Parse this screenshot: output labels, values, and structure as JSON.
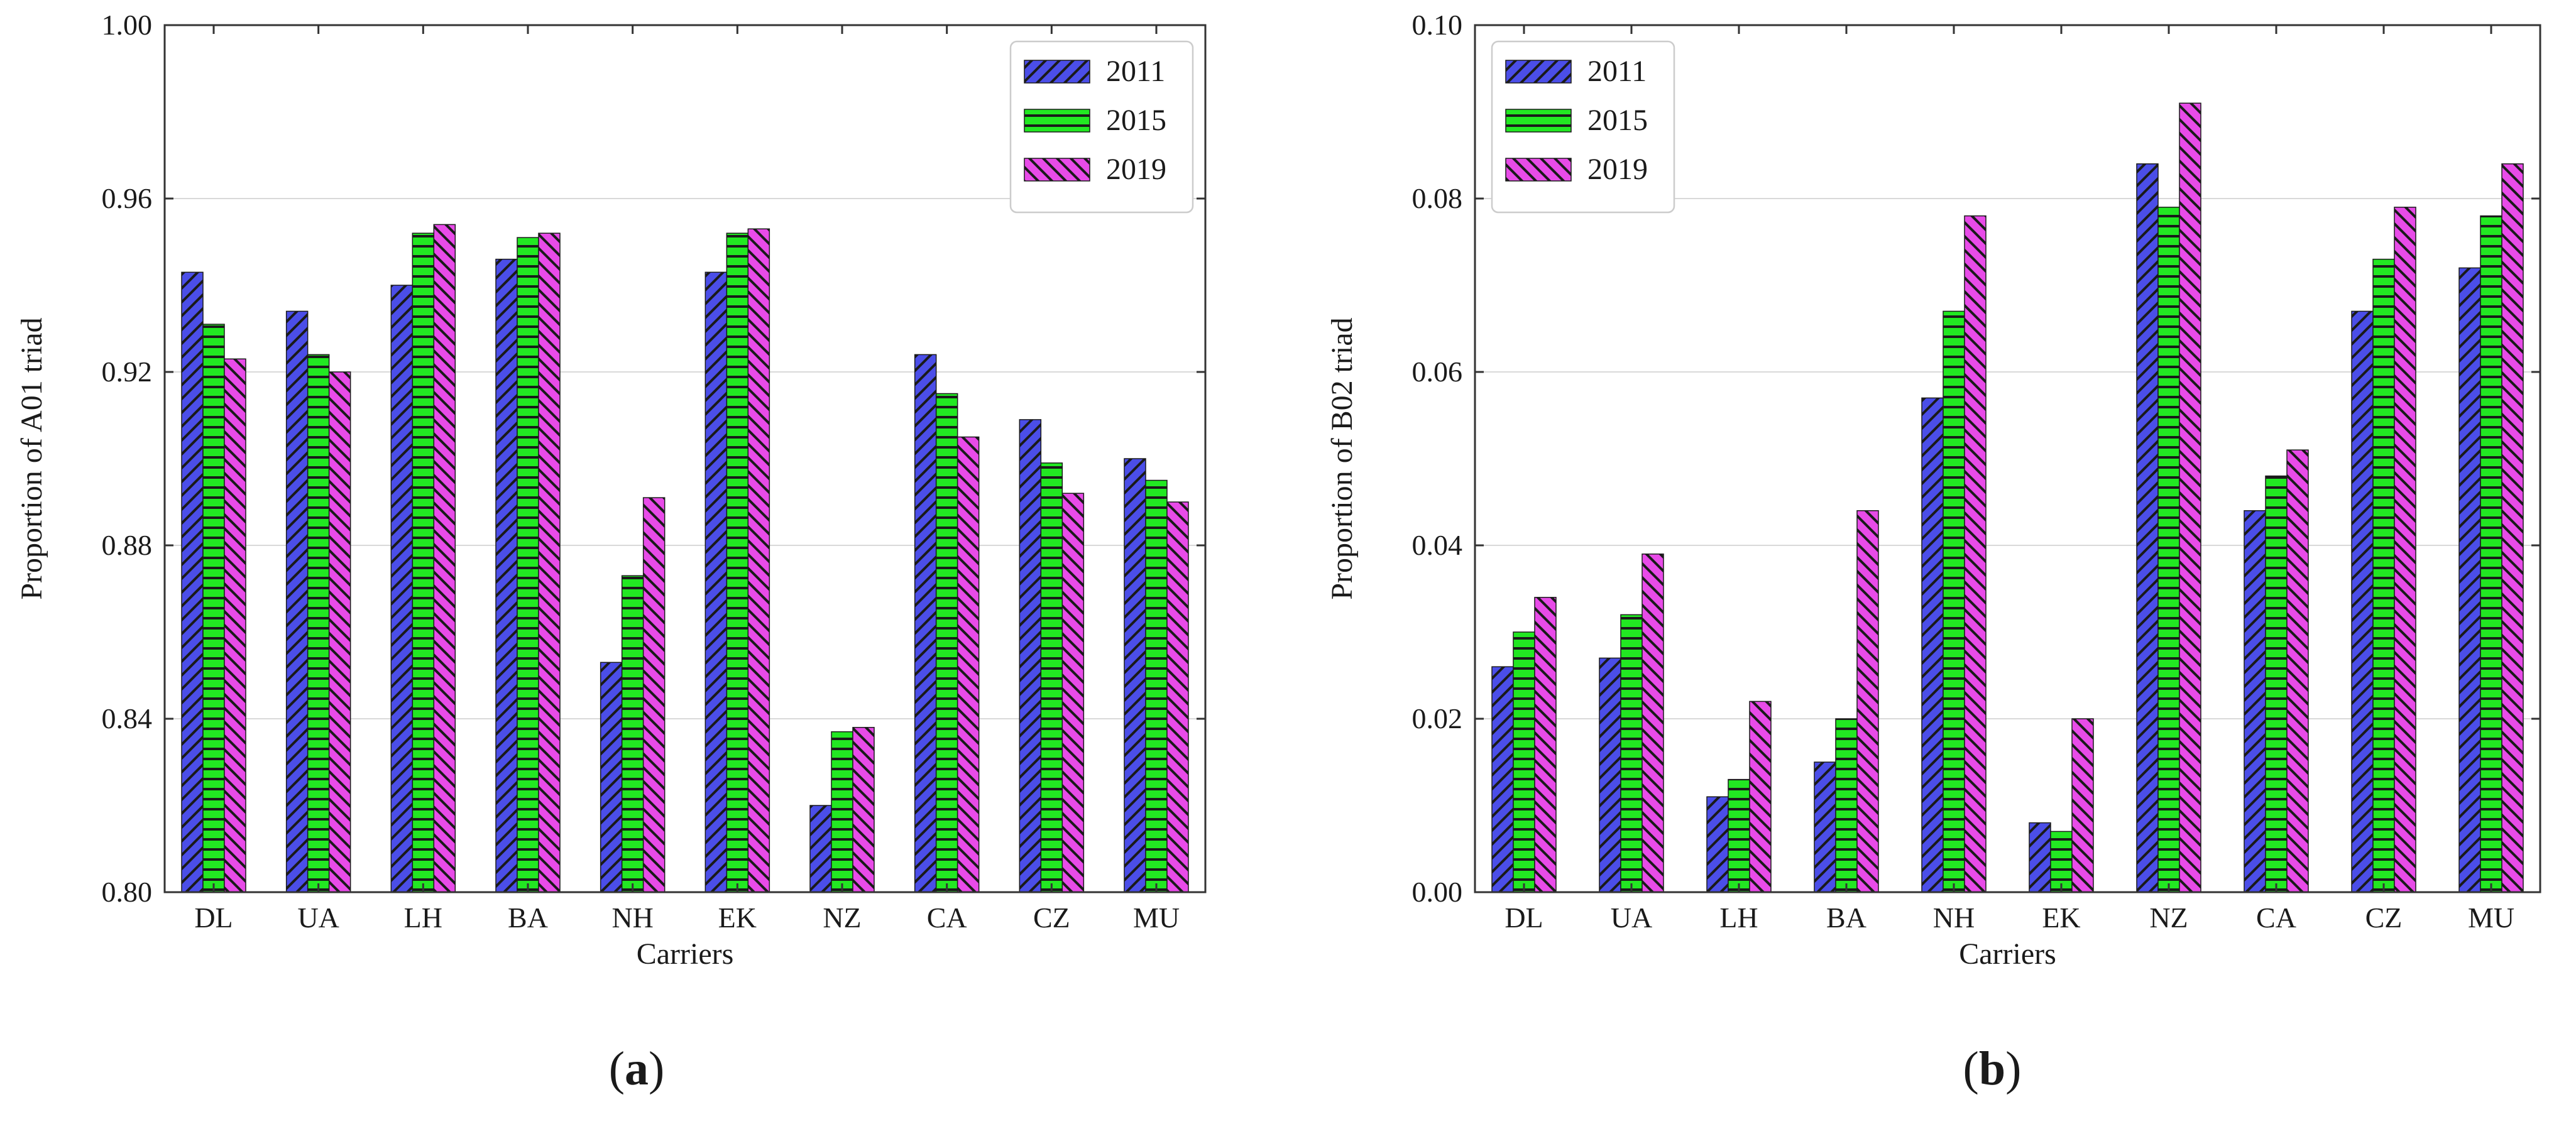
{
  "chart_data": [
    {
      "type": "bar",
      "panel_label": "a",
      "title": "",
      "xlabel": "Carriers",
      "ylabel": "Proportion of A01 triad",
      "ylim": [
        0.8,
        1.0
      ],
      "yticks": [
        0.8,
        0.84,
        0.88,
        0.92,
        0.96,
        1.0
      ],
      "ytick_labels": [
        "0.80",
        "0.84",
        "0.88",
        "0.92",
        "0.96",
        "1.00"
      ],
      "grid": true,
      "legend_position": "top-right",
      "categories": [
        "DL",
        "UA",
        "LH",
        "BA",
        "NH",
        "EK",
        "NZ",
        "CA",
        "CZ",
        "MU"
      ],
      "series": [
        {
          "name": "2011",
          "color": "#4b4ee8",
          "hatch": "diagonal-forward",
          "values": [
            0.943,
            0.934,
            0.94,
            0.946,
            0.853,
            0.943,
            0.82,
            0.924,
            0.909,
            0.9
          ]
        },
        {
          "name": "2015",
          "color": "#22e822",
          "hatch": "horizontal",
          "values": [
            0.931,
            0.924,
            0.952,
            0.951,
            0.873,
            0.952,
            0.837,
            0.915,
            0.899,
            0.895
          ]
        },
        {
          "name": "2019",
          "color": "#e84be8",
          "hatch": "diagonal-back",
          "values": [
            0.923,
            0.92,
            0.954,
            0.952,
            0.891,
            0.953,
            0.838,
            0.905,
            0.892,
            0.89
          ]
        }
      ]
    },
    {
      "type": "bar",
      "panel_label": "b",
      "title": "",
      "xlabel": "Carriers",
      "ylabel": "Proportion of B02 triad",
      "ylim": [
        0.0,
        0.1
      ],
      "yticks": [
        0.0,
        0.02,
        0.04,
        0.06,
        0.08,
        0.1
      ],
      "ytick_labels": [
        "0.00",
        "0.02",
        "0.04",
        "0.06",
        "0.08",
        "0.10"
      ],
      "grid": true,
      "legend_position": "top-left",
      "categories": [
        "DL",
        "UA",
        "LH",
        "BA",
        "NH",
        "EK",
        "NZ",
        "CA",
        "CZ",
        "MU"
      ],
      "series": [
        {
          "name": "2011",
          "color": "#4b4ee8",
          "hatch": "diagonal-forward",
          "values": [
            0.026,
            0.027,
            0.011,
            0.015,
            0.057,
            0.008,
            0.084,
            0.044,
            0.067,
            0.072
          ]
        },
        {
          "name": "2015",
          "color": "#22e822",
          "hatch": "horizontal",
          "values": [
            0.03,
            0.032,
            0.013,
            0.02,
            0.067,
            0.007,
            0.079,
            0.048,
            0.073,
            0.078
          ]
        },
        {
          "name": "2019",
          "color": "#e84be8",
          "hatch": "diagonal-back",
          "values": [
            0.034,
            0.039,
            0.022,
            0.044,
            0.078,
            0.02,
            0.091,
            0.051,
            0.079,
            0.084
          ]
        }
      ]
    }
  ]
}
